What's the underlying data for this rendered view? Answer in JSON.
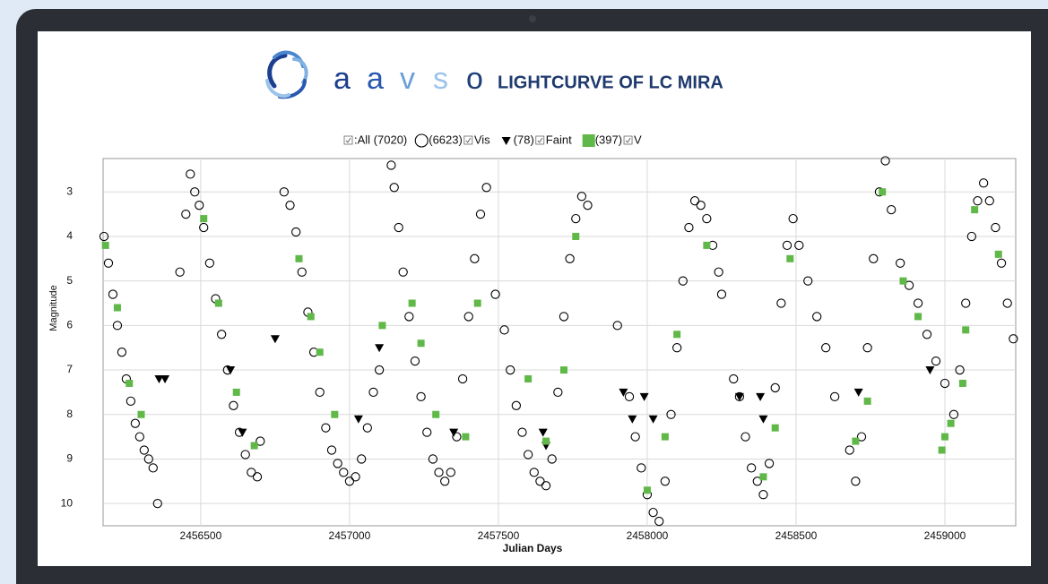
{
  "chart_data": {
    "type": "scatter",
    "logo": [
      "a",
      "a",
      "v",
      "s",
      "o"
    ],
    "title": "LIGHTCURVE OF LC MIRA",
    "legend_all": ":All (7020)",
    "x_label": "Julian Days",
    "y_label": "Magnitude",
    "xlim": [
      2456172,
      2459238
    ],
    "ylim": [
      10.5,
      2.25
    ],
    "xticks": [
      2456500,
      2457000,
      2457500,
      2458000,
      2458500,
      2459000
    ],
    "yticks": [
      3,
      4,
      5,
      6,
      7,
      8,
      9,
      10
    ],
    "grid": true,
    "series": [
      {
        "name": "Vis",
        "count": 6623,
        "count_label": "(6623)",
        "marker": "circle",
        "color": "#000000",
        "x": [
          2456175,
          2456190,
          2456205,
          2456220,
          2456235,
          2456250,
          2456265,
          2456280,
          2456295,
          2456310,
          2456325,
          2456340,
          2456355,
          2456430,
          2456450,
          2456465,
          2456480,
          2456495,
          2456510,
          2456530,
          2456550,
          2456570,
          2456590,
          2456610,
          2456630,
          2456650,
          2456670,
          2456690,
          2456700,
          2456780,
          2456800,
          2456820,
          2456840,
          2456860,
          2456880,
          2456900,
          2456920,
          2456940,
          2456960,
          2456980,
          2457000,
          2457020,
          2457040,
          2457060,
          2457080,
          2457100,
          2457140,
          2457150,
          2457165,
          2457180,
          2457200,
          2457220,
          2457240,
          2457260,
          2457280,
          2457300,
          2457320,
          2457340,
          2457360,
          2457380,
          2457400,
          2457420,
          2457440,
          2457460,
          2457490,
          2457520,
          2457540,
          2457560,
          2457580,
          2457600,
          2457620,
          2457640,
          2457660,
          2457680,
          2457700,
          2457720,
          2457740,
          2457760,
          2457780,
          2457800,
          2457900,
          2457940,
          2457960,
          2457980,
          2458000,
          2458020,
          2458040,
          2458060,
          2458080,
          2458100,
          2458120,
          2458140,
          2458160,
          2458180,
          2458200,
          2458220,
          2458240,
          2458250,
          2458290,
          2458310,
          2458330,
          2458350,
          2458370,
          2458390,
          2458410,
          2458430,
          2458450,
          2458470,
          2458490,
          2458510,
          2458540,
          2458570,
          2458600,
          2458630,
          2458680,
          2458700,
          2458720,
          2458740,
          2458760,
          2458780,
          2458800,
          2458820,
          2458850,
          2458880,
          2458910,
          2458940,
          2458970,
          2459000,
          2459030,
          2459050,
          2459070,
          2459090,
          2459110,
          2459130,
          2459150,
          2459170,
          2459190,
          2459210,
          2459230
        ],
        "values": [
          4.0,
          4.6,
          5.3,
          6.0,
          6.6,
          7.2,
          7.7,
          8.2,
          8.5,
          8.8,
          9.0,
          9.2,
          10.0,
          4.8,
          3.5,
          2.6,
          3.0,
          3.3,
          3.8,
          4.6,
          5.4,
          6.2,
          7.0,
          7.8,
          8.4,
          8.9,
          9.3,
          9.4,
          8.6,
          3.0,
          3.3,
          3.9,
          4.8,
          5.7,
          6.6,
          7.5,
          8.3,
          8.8,
          9.1,
          9.3,
          9.5,
          9.4,
          9.0,
          8.3,
          7.5,
          7.0,
          2.4,
          2.9,
          3.8,
          4.8,
          5.8,
          6.8,
          7.6,
          8.4,
          9.0,
          9.3,
          9.5,
          9.3,
          8.5,
          7.2,
          5.8,
          4.5,
          3.5,
          2.9,
          5.3,
          6.1,
          7.0,
          7.8,
          8.4,
          8.9,
          9.3,
          9.5,
          9.6,
          9.0,
          7.5,
          5.8,
          4.5,
          3.6,
          3.1,
          3.3,
          6.0,
          7.6,
          8.5,
          9.2,
          9.8,
          10.2,
          10.4,
          9.5,
          8.0,
          6.5,
          5.0,
          3.8,
          3.2,
          3.3,
          3.6,
          4.2,
          4.8,
          5.3,
          7.2,
          7.6,
          8.5,
          9.2,
          9.5,
          9.8,
          9.1,
          7.4,
          5.5,
          4.2,
          3.6,
          4.2,
          5.0,
          5.8,
          6.5,
          7.6,
          8.8,
          9.5,
          8.5,
          6.5,
          4.5,
          3.0,
          2.3,
          3.4,
          4.6,
          5.1,
          5.5,
          6.2,
          6.8,
          7.3,
          8.0,
          7.0,
          5.5,
          4.0,
          3.2,
          2.8,
          3.2,
          3.8,
          4.6,
          5.5,
          6.3
        ]
      },
      {
        "name": "Faint",
        "count": 78,
        "count_label": "(78)",
        "marker": "triangle",
        "color": "#000000",
        "x": [
          2456360,
          2456380,
          2456600,
          2456640,
          2456750,
          2457030,
          2457100,
          2457350,
          2457650,
          2457660,
          2457920,
          2457950,
          2457990,
          2458020,
          2458310,
          2458380,
          2458390,
          2458710,
          2458950
        ],
        "values": [
          7.2,
          7.2,
          7.0,
          8.4,
          6.3,
          8.1,
          6.5,
          8.4,
          8.4,
          8.7,
          7.5,
          8.1,
          7.6,
          8.1,
          7.6,
          7.6,
          8.1,
          7.5,
          7.0
        ]
      },
      {
        "name": "V",
        "count": 397,
        "count_label": "(397)",
        "marker": "square",
        "color": "#5fb847",
        "x": [
          2456180,
          2456220,
          2456260,
          2456300,
          2456510,
          2456560,
          2456620,
          2456680,
          2456830,
          2456870,
          2456900,
          2456950,
          2457110,
          2457210,
          2457240,
          2457290,
          2457390,
          2457430,
          2457600,
          2457660,
          2457720,
          2457760,
          2458000,
          2458060,
          2458100,
          2458200,
          2458390,
          2458430,
          2458480,
          2458700,
          2458740,
          2458790,
          2458860,
          2458910,
          2458990,
          2459000,
          2459020,
          2459060,
          2459070,
          2459100,
          2459180
        ],
        "values": [
          4.2,
          5.6,
          7.3,
          8.0,
          3.6,
          5.5,
          7.5,
          8.7,
          4.5,
          5.8,
          6.6,
          8.0,
          6.0,
          5.5,
          6.4,
          8.0,
          8.5,
          5.5,
          7.2,
          8.6,
          7.0,
          4.0,
          9.7,
          8.5,
          6.2,
          4.2,
          9.4,
          8.3,
          4.5,
          8.6,
          7.7,
          3.0,
          5.0,
          5.8,
          8.8,
          8.5,
          8.2,
          7.3,
          6.1,
          3.4,
          4.4
        ]
      }
    ]
  }
}
